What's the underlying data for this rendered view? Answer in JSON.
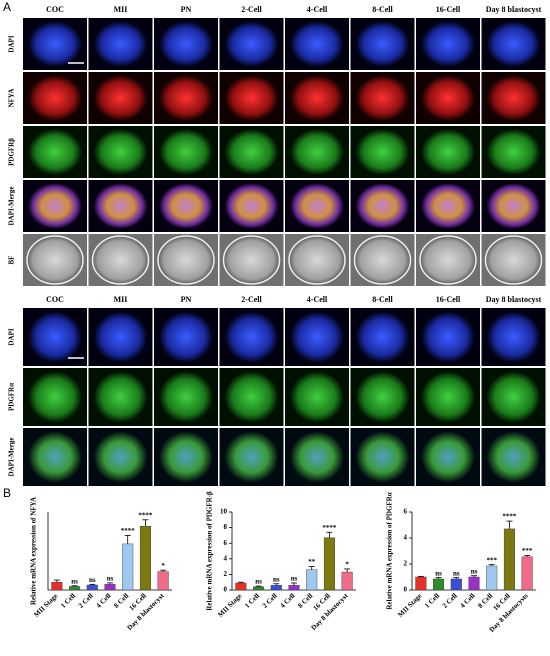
{
  "panel_a": {
    "label": "A",
    "top": {
      "columns": [
        "COC",
        "MII",
        "PN",
        "2-Cell",
        "4-Cell",
        "8-Cell",
        "16-Cell",
        "Day 8 blastocyst"
      ],
      "rows": [
        "DAPI",
        "NFYA",
        "PDGFRβ",
        "DAPI-Merge",
        "BF"
      ]
    },
    "bottom": {
      "columns": [
        "COC",
        "MII",
        "PN",
        "2-Cell",
        "4-Cell",
        "8-Cell",
        "16-Cell",
        "Day 8 blastocyst"
      ],
      "rows": [
        "DAPI",
        "PDGFRα",
        "DAPI-Merge"
      ]
    }
  },
  "panel_b": {
    "label": "B"
  },
  "chart_data": [
    {
      "type": "bar",
      "y_label": "Relative mRNA expression of NFYA",
      "categories": [
        "MII Stage",
        "1 Cell",
        "2 Cell",
        "4 Cell",
        "8 Cell",
        "16 Cell",
        "Day 8 blastocyst"
      ],
      "values": [
        1.1,
        0.5,
        0.7,
        0.8,
        6.5,
        9.0,
        2.6
      ],
      "errors": [
        0.3,
        0.1,
        0.1,
        0.2,
        1.2,
        0.9,
        0.2
      ],
      "annotations": [
        null,
        "ns",
        "ns",
        "ns",
        "****",
        "****",
        "*"
      ],
      "colors": [
        "#e8302a",
        "#2e8b2e",
        "#3a4fd6",
        "#9b30c8",
        "#9ec8f0",
        "#7a7a10",
        "#f06a8a"
      ],
      "ylim": [
        0,
        11
      ]
    },
    {
      "type": "bar",
      "y_label": "Relative mRNA expression of PDGFR-β",
      "categories": [
        "MII Stage",
        "1 Cell",
        "2 Cell",
        "4 Cell",
        "8 Cell",
        "16 Cell",
        "Day 8 blastocyst"
      ],
      "values": [
        0.9,
        0.4,
        0.6,
        0.6,
        2.6,
        6.7,
        2.3
      ],
      "errors": [
        0.1,
        0.1,
        0.2,
        0.3,
        0.4,
        0.7,
        0.4
      ],
      "annotations": [
        null,
        "ns",
        "ns",
        "ns",
        "**",
        "****",
        "*"
      ],
      "colors": [
        "#e8302a",
        "#2e8b2e",
        "#3a4fd6",
        "#9b30c8",
        "#9ec8f0",
        "#7a7a10",
        "#f06a8a"
      ],
      "ylim": [
        0,
        10
      ],
      "yticks": [
        0,
        2,
        4,
        6,
        8,
        10
      ]
    },
    {
      "type": "bar",
      "y_label": "Relative mRNA expression of PDGFRα",
      "categories": [
        "MII Stage",
        "1 Cell",
        "2 Cell",
        "4 Cell",
        "8 Cell",
        "16 Cell",
        "Day 8 blastocysts"
      ],
      "values": [
        1.0,
        0.85,
        0.85,
        1.0,
        1.85,
        4.7,
        2.55
      ],
      "errors": [
        0.05,
        0.1,
        0.1,
        0.1,
        0.1,
        0.6,
        0.1
      ],
      "annotations": [
        null,
        "ns",
        "ns",
        "ns",
        "***",
        "****",
        "***"
      ],
      "colors": [
        "#e8302a",
        "#2e8b2e",
        "#3a4fd6",
        "#9b30c8",
        "#9ec8f0",
        "#7a7a10",
        "#f06a8a"
      ],
      "ylim": [
        0,
        6
      ],
      "yticks": [
        0,
        2,
        4,
        6
      ]
    }
  ]
}
